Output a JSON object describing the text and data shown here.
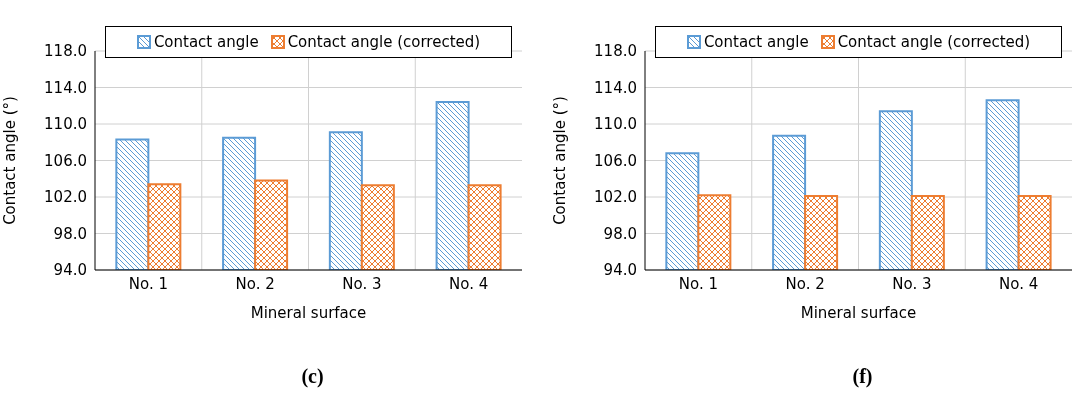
{
  "chart_data": [
    {
      "type": "bar",
      "categories": [
        "No. 1",
        "No. 2",
        "No. 3",
        "No. 4"
      ],
      "xlabel": "Mineral surface",
      "ylabel": "Contact angle (°)",
      "series": [
        {
          "name": "Contact angle",
          "color": "#5b9bd5",
          "values": [
            108.3,
            108.5,
            109.1,
            112.4
          ]
        },
        {
          "name": "Contact angle (corrected)",
          "color": "#ed7d31",
          "values": [
            103.4,
            103.8,
            103.3,
            103.3
          ]
        }
      ],
      "ylim": [
        94,
        118
      ],
      "yticks": [
        {
          "value": 94,
          "label": "94.0"
        },
        {
          "value": 98,
          "label": "98.0"
        },
        {
          "value": 102,
          "label": "102.0"
        },
        {
          "value": 106,
          "label": "106.0"
        },
        {
          "value": 110,
          "label": "110.0"
        },
        {
          "value": 114,
          "label": "114.0"
        },
        {
          "value": 118,
          "label": "118.0"
        }
      ],
      "grid": true,
      "legend": "top",
      "annotations": [
        "(c)"
      ]
    },
    {
      "type": "bar",
      "categories": [
        "No. 1",
        "No. 2",
        "No. 3",
        "No. 4"
      ],
      "xlabel": "Mineral surface",
      "ylabel": "Contact angle (°)",
      "series": [
        {
          "name": "Contact angle",
          "color": "#5b9bd5",
          "values": [
            106.8,
            108.7,
            111.4,
            112.6
          ]
        },
        {
          "name": "Contact angle (corrected)",
          "color": "#ed7d31",
          "values": [
            102.2,
            102.1,
            102.1,
            102.1
          ]
        }
      ],
      "ylim": [
        94,
        118
      ],
      "yticks": [
        {
          "value": 94,
          "label": "94.0"
        },
        {
          "value": 98,
          "label": "98.0"
        },
        {
          "value": 102,
          "label": "102.0"
        },
        {
          "value": 106,
          "label": "106.0"
        },
        {
          "value": 110,
          "label": "110.0"
        },
        {
          "value": 114,
          "label": "114.0"
        },
        {
          "value": 118,
          "label": "118.0"
        }
      ],
      "grid": true,
      "legend": "top",
      "annotations": [
        "(f)"
      ]
    }
  ]
}
